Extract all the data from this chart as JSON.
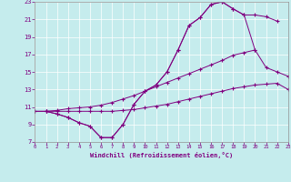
{
  "xlabel": "Windchill (Refroidissement éolien,°C)",
  "bg_color": "#c5eced",
  "line_color": "#800080",
  "xlim": [
    0,
    23
  ],
  "ylim": [
    7,
    23
  ],
  "xticks": [
    0,
    1,
    2,
    3,
    4,
    5,
    6,
    7,
    8,
    9,
    10,
    11,
    12,
    13,
    14,
    15,
    16,
    17,
    18,
    19,
    20,
    21,
    22,
    23
  ],
  "yticks": [
    7,
    9,
    11,
    13,
    15,
    17,
    19,
    21,
    23
  ],
  "series": [
    {
      "x": [
        0,
        1,
        2,
        3,
        4,
        5,
        6,
        7,
        8,
        9,
        10,
        11,
        12,
        13,
        14,
        15,
        16,
        17,
        18,
        19,
        20
      ],
      "y": [
        10.5,
        10.5,
        10.6,
        10.8,
        10.9,
        11.0,
        11.2,
        11.5,
        11.9,
        12.3,
        12.8,
        13.3,
        13.8,
        14.3,
        14.8,
        15.3,
        15.8,
        16.3,
        16.9,
        17.2,
        17.5
      ]
    },
    {
      "x": [
        0,
        1,
        2,
        3,
        4,
        5,
        6,
        7,
        8,
        9,
        10,
        11,
        12,
        13,
        14,
        15,
        16,
        17,
        18,
        19,
        20,
        21,
        22,
        23
      ],
      "y": [
        10.5,
        10.5,
        10.5,
        10.5,
        10.5,
        10.5,
        10.5,
        10.5,
        10.6,
        10.7,
        10.9,
        11.1,
        11.3,
        11.6,
        11.9,
        12.2,
        12.5,
        12.8,
        13.1,
        13.3,
        13.5,
        13.6,
        13.7,
        13.0
      ]
    },
    {
      "x": [
        1,
        2,
        3,
        4,
        5,
        6,
        7,
        8,
        9,
        10,
        11,
        12,
        13,
        14,
        15,
        16,
        17,
        18,
        19,
        20,
        21,
        22
      ],
      "y": [
        10.5,
        10.2,
        9.8,
        9.2,
        8.8,
        7.5,
        7.5,
        9.0,
        11.3,
        12.8,
        13.5,
        15.0,
        17.5,
        20.3,
        21.2,
        22.7,
        23.0,
        22.2,
        21.5,
        21.5,
        21.3,
        20.8
      ]
    },
    {
      "x": [
        1,
        2,
        3,
        4,
        5,
        6,
        7,
        8,
        9,
        10,
        11,
        12,
        13,
        14,
        15,
        16,
        17,
        18,
        19,
        20,
        21,
        22,
        23
      ],
      "y": [
        10.5,
        10.2,
        9.8,
        9.2,
        8.8,
        7.5,
        7.5,
        9.0,
        11.3,
        12.8,
        13.5,
        15.0,
        17.5,
        20.3,
        21.2,
        22.7,
        23.0,
        22.2,
        21.5,
        17.5,
        15.5,
        15.0,
        14.5
      ]
    }
  ]
}
